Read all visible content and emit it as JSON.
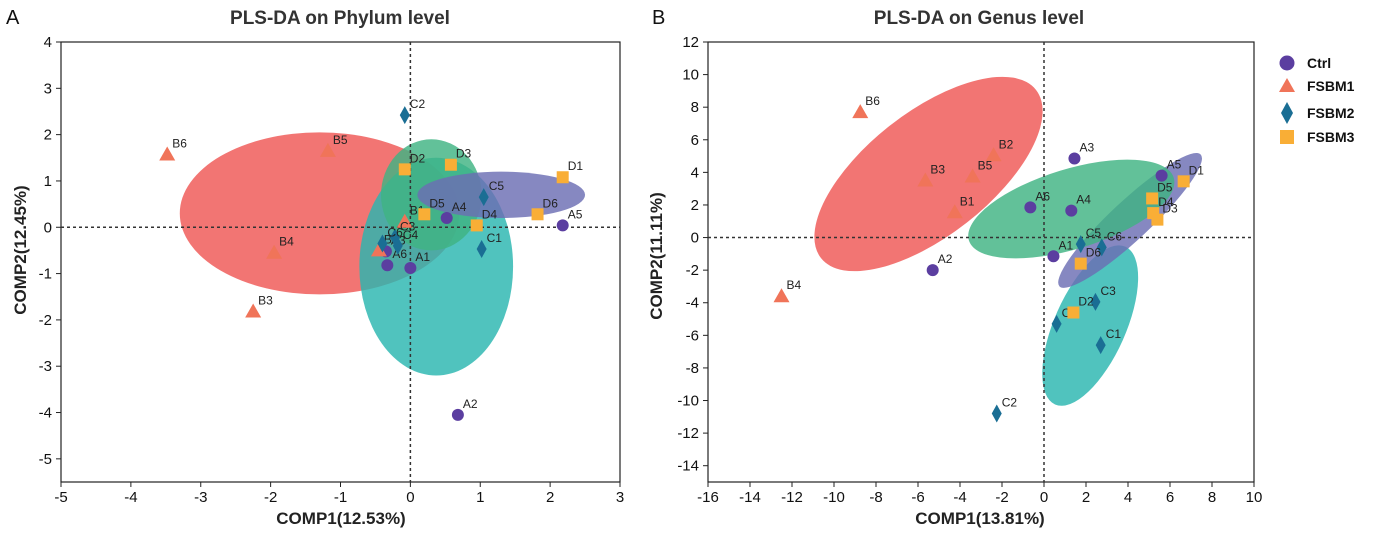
{
  "legend": {
    "Ctrl": {
      "label": "Ctrl",
      "color": "#5b3ea0",
      "marker": "circle"
    },
    "FSBM1": {
      "label": "FSBM1",
      "color": "#f07459",
      "marker": "triangle"
    },
    "FSBM2": {
      "label": "FSBM2",
      "color": "#1a6e94",
      "marker": "diamond"
    },
    "FSBM3": {
      "label": "FSBM3",
      "color": "#f9ae36",
      "marker": "square"
    }
  },
  "chart_data": [
    {
      "type": "scatter",
      "panel_letter": "A",
      "title": "PLS-DA on Phylum level",
      "xlabel": "COMP1(12.53%)",
      "ylabel": "COMP2(12.45%)",
      "xlim": [
        -5,
        3
      ],
      "ylim": [
        -5.5,
        4
      ],
      "xticks": [
        "-5",
        "-4",
        "-3",
        "-2",
        "-1",
        "0",
        "1",
        "2",
        "3"
      ],
      "yticks": [
        "4",
        "3",
        "2",
        "1",
        "0",
        "-1",
        "-2",
        "-3",
        "-4",
        "-5"
      ],
      "points": [
        {
          "label": "A1",
          "group": "Ctrl",
          "x": 0.0,
          "y": -0.88
        },
        {
          "label": "A2",
          "group": "Ctrl",
          "x": 0.68,
          "y": -4.05
        },
        {
          "label": "A3",
          "group": "Ctrl",
          "x": -0.35,
          "y": -0.52
        },
        {
          "label": "A4",
          "group": "Ctrl",
          "x": 0.52,
          "y": 0.2
        },
        {
          "label": "A5",
          "group": "Ctrl",
          "x": 2.18,
          "y": 0.04
        },
        {
          "label": "A6",
          "group": "Ctrl",
          "x": -0.33,
          "y": -0.82
        },
        {
          "label": "B1",
          "group": "FSBM1",
          "x": -0.08,
          "y": 0.12
        },
        {
          "label": "B2",
          "group": "FSBM1",
          "x": -0.45,
          "y": -0.5
        },
        {
          "label": "B3",
          "group": "FSBM1",
          "x": -2.25,
          "y": -1.82
        },
        {
          "label": "B4",
          "group": "FSBM1",
          "x": -1.95,
          "y": -0.55
        },
        {
          "label": "B5",
          "group": "FSBM1",
          "x": -1.18,
          "y": 1.65
        },
        {
          "label": "B6",
          "group": "FSBM1",
          "x": -3.48,
          "y": 1.57
        },
        {
          "label": "C1",
          "group": "FSBM2",
          "x": 1.02,
          "y": -0.47
        },
        {
          "label": "C2",
          "group": "FSBM2",
          "x": -0.08,
          "y": 2.42
        },
        {
          "label": "C3",
          "group": "FSBM2",
          "x": -0.22,
          "y": -0.22
        },
        {
          "label": "C4",
          "group": "FSBM2",
          "x": -0.18,
          "y": -0.4
        },
        {
          "label": "C5",
          "group": "FSBM2",
          "x": 1.05,
          "y": 0.65
        },
        {
          "label": "C6",
          "group": "FSBM2",
          "x": -0.4,
          "y": -0.35
        },
        {
          "label": "D1",
          "group": "FSBM3",
          "x": 2.18,
          "y": 1.08
        },
        {
          "label": "D2",
          "group": "FSBM3",
          "x": -0.08,
          "y": 1.25
        },
        {
          "label": "D3",
          "group": "FSBM3",
          "x": 0.58,
          "y": 1.35
        },
        {
          "label": "D4",
          "group": "FSBM3",
          "x": 0.95,
          "y": 0.04
        },
        {
          "label": "D5",
          "group": "FSBM3",
          "x": 0.2,
          "y": 0.28
        },
        {
          "label": "D6",
          "group": "FSBM3",
          "x": 1.82,
          "y": 0.28
        }
      ],
      "ellipses": [
        {
          "group": "FSBM1",
          "cx": -1.3,
          "cy": 0.3,
          "rx": 2.0,
          "ry": 1.75,
          "rotate": 0
        },
        {
          "group": "FSBM2",
          "cx": 0.37,
          "cy": -0.85,
          "rx": 1.1,
          "ry": 2.35,
          "rotate": 0
        },
        {
          "group": "FSBM3",
          "cx": 0.3,
          "cy": 0.7,
          "rx": 0.72,
          "ry": 1.2,
          "rotate": 0
        },
        {
          "group": "Ctrl",
          "cx": 1.3,
          "cy": 0.7,
          "rx": 1.2,
          "ry": 0.5,
          "rotate": 0
        }
      ]
    },
    {
      "type": "scatter",
      "panel_letter": "B",
      "title": "PLS-DA on Genus level",
      "xlabel": "COMP1(13.81%)",
      "ylabel": "COMP2(11.11%)",
      "xlim": [
        -16,
        10
      ],
      "ylim": [
        -15,
        12
      ],
      "xticks": [
        "-16",
        "-14",
        "-12",
        "-10",
        "-8",
        "-6",
        "-4",
        "-2",
        "0",
        "2",
        "4",
        "6",
        "8",
        "10"
      ],
      "yticks": [
        "12",
        "10",
        "8",
        "6",
        "4",
        "2",
        "0",
        "-2",
        "-4",
        "-6",
        "-8",
        "-10",
        "-12",
        "-14"
      ],
      "points": [
        {
          "label": "A1",
          "group": "Ctrl",
          "x": 0.45,
          "y": -1.15
        },
        {
          "label": "A2",
          "group": "Ctrl",
          "x": -5.3,
          "y": -2.0
        },
        {
          "label": "A3",
          "group": "Ctrl",
          "x": 1.45,
          "y": 4.85
        },
        {
          "label": "A4",
          "group": "Ctrl",
          "x": 1.3,
          "y": 1.65
        },
        {
          "label": "A5",
          "group": "Ctrl",
          "x": 5.6,
          "y": 3.8
        },
        {
          "label": "A6",
          "group": "Ctrl",
          "x": -0.65,
          "y": 1.85
        },
        {
          "label": "B1",
          "group": "FSBM1",
          "x": -4.25,
          "y": 1.55
        },
        {
          "label": "B2",
          "group": "FSBM1",
          "x": -2.4,
          "y": 5.05
        },
        {
          "label": "B3",
          "group": "FSBM1",
          "x": -5.65,
          "y": 3.5
        },
        {
          "label": "B4",
          "group": "FSBM1",
          "x": -12.5,
          "y": -3.6
        },
        {
          "label": "B5",
          "group": "FSBM1",
          "x": -3.4,
          "y": 3.75
        },
        {
          "label": "B6",
          "group": "FSBM1",
          "x": -8.75,
          "y": 7.7
        },
        {
          "label": "C1",
          "group": "FSBM2",
          "x": 2.7,
          "y": -6.6
        },
        {
          "label": "C2",
          "group": "FSBM2",
          "x": -2.25,
          "y": -10.8
        },
        {
          "label": "C3",
          "group": "FSBM2",
          "x": 2.45,
          "y": -3.95
        },
        {
          "label": "C4",
          "group": "FSBM2",
          "x": 0.6,
          "y": -5.3
        },
        {
          "label": "C5",
          "group": "FSBM2",
          "x": 1.75,
          "y": -0.4
        },
        {
          "label": "C6",
          "group": "FSBM2",
          "x": 2.75,
          "y": -0.6
        },
        {
          "label": "D1",
          "group": "FSBM3",
          "x": 6.65,
          "y": 3.45
        },
        {
          "label": "D2",
          "group": "FSBM3",
          "x": 1.4,
          "y": -4.6
        },
        {
          "label": "D3",
          "group": "FSBM3",
          "x": 5.4,
          "y": 1.1
        },
        {
          "label": "D4",
          "group": "FSBM3",
          "x": 5.2,
          "y": 1.5
        },
        {
          "label": "D5",
          "group": "FSBM3",
          "x": 5.15,
          "y": 2.4
        },
        {
          "label": "D6",
          "group": "FSBM3",
          "x": 1.75,
          "y": -1.6
        }
      ],
      "ellipses": [
        {
          "group": "FSBM1",
          "cx": -5.5,
          "cy": 3.9,
          "rx": 6.5,
          "ry": 3.8,
          "rotate": -38
        },
        {
          "group": "FSBM2",
          "cx": 2.2,
          "cy": -5.4,
          "rx": 1.7,
          "ry": 5.3,
          "rotate": 24
        },
        {
          "group": "Ctrl",
          "cx": 4.1,
          "cy": 1.05,
          "rx": 4.6,
          "ry": 1.2,
          "rotate": -43
        },
        {
          "group": "FSBM3",
          "cx": 1.3,
          "cy": 1.75,
          "rx": 5.1,
          "ry": 2.45,
          "rotate": -17
        }
      ]
    }
  ]
}
